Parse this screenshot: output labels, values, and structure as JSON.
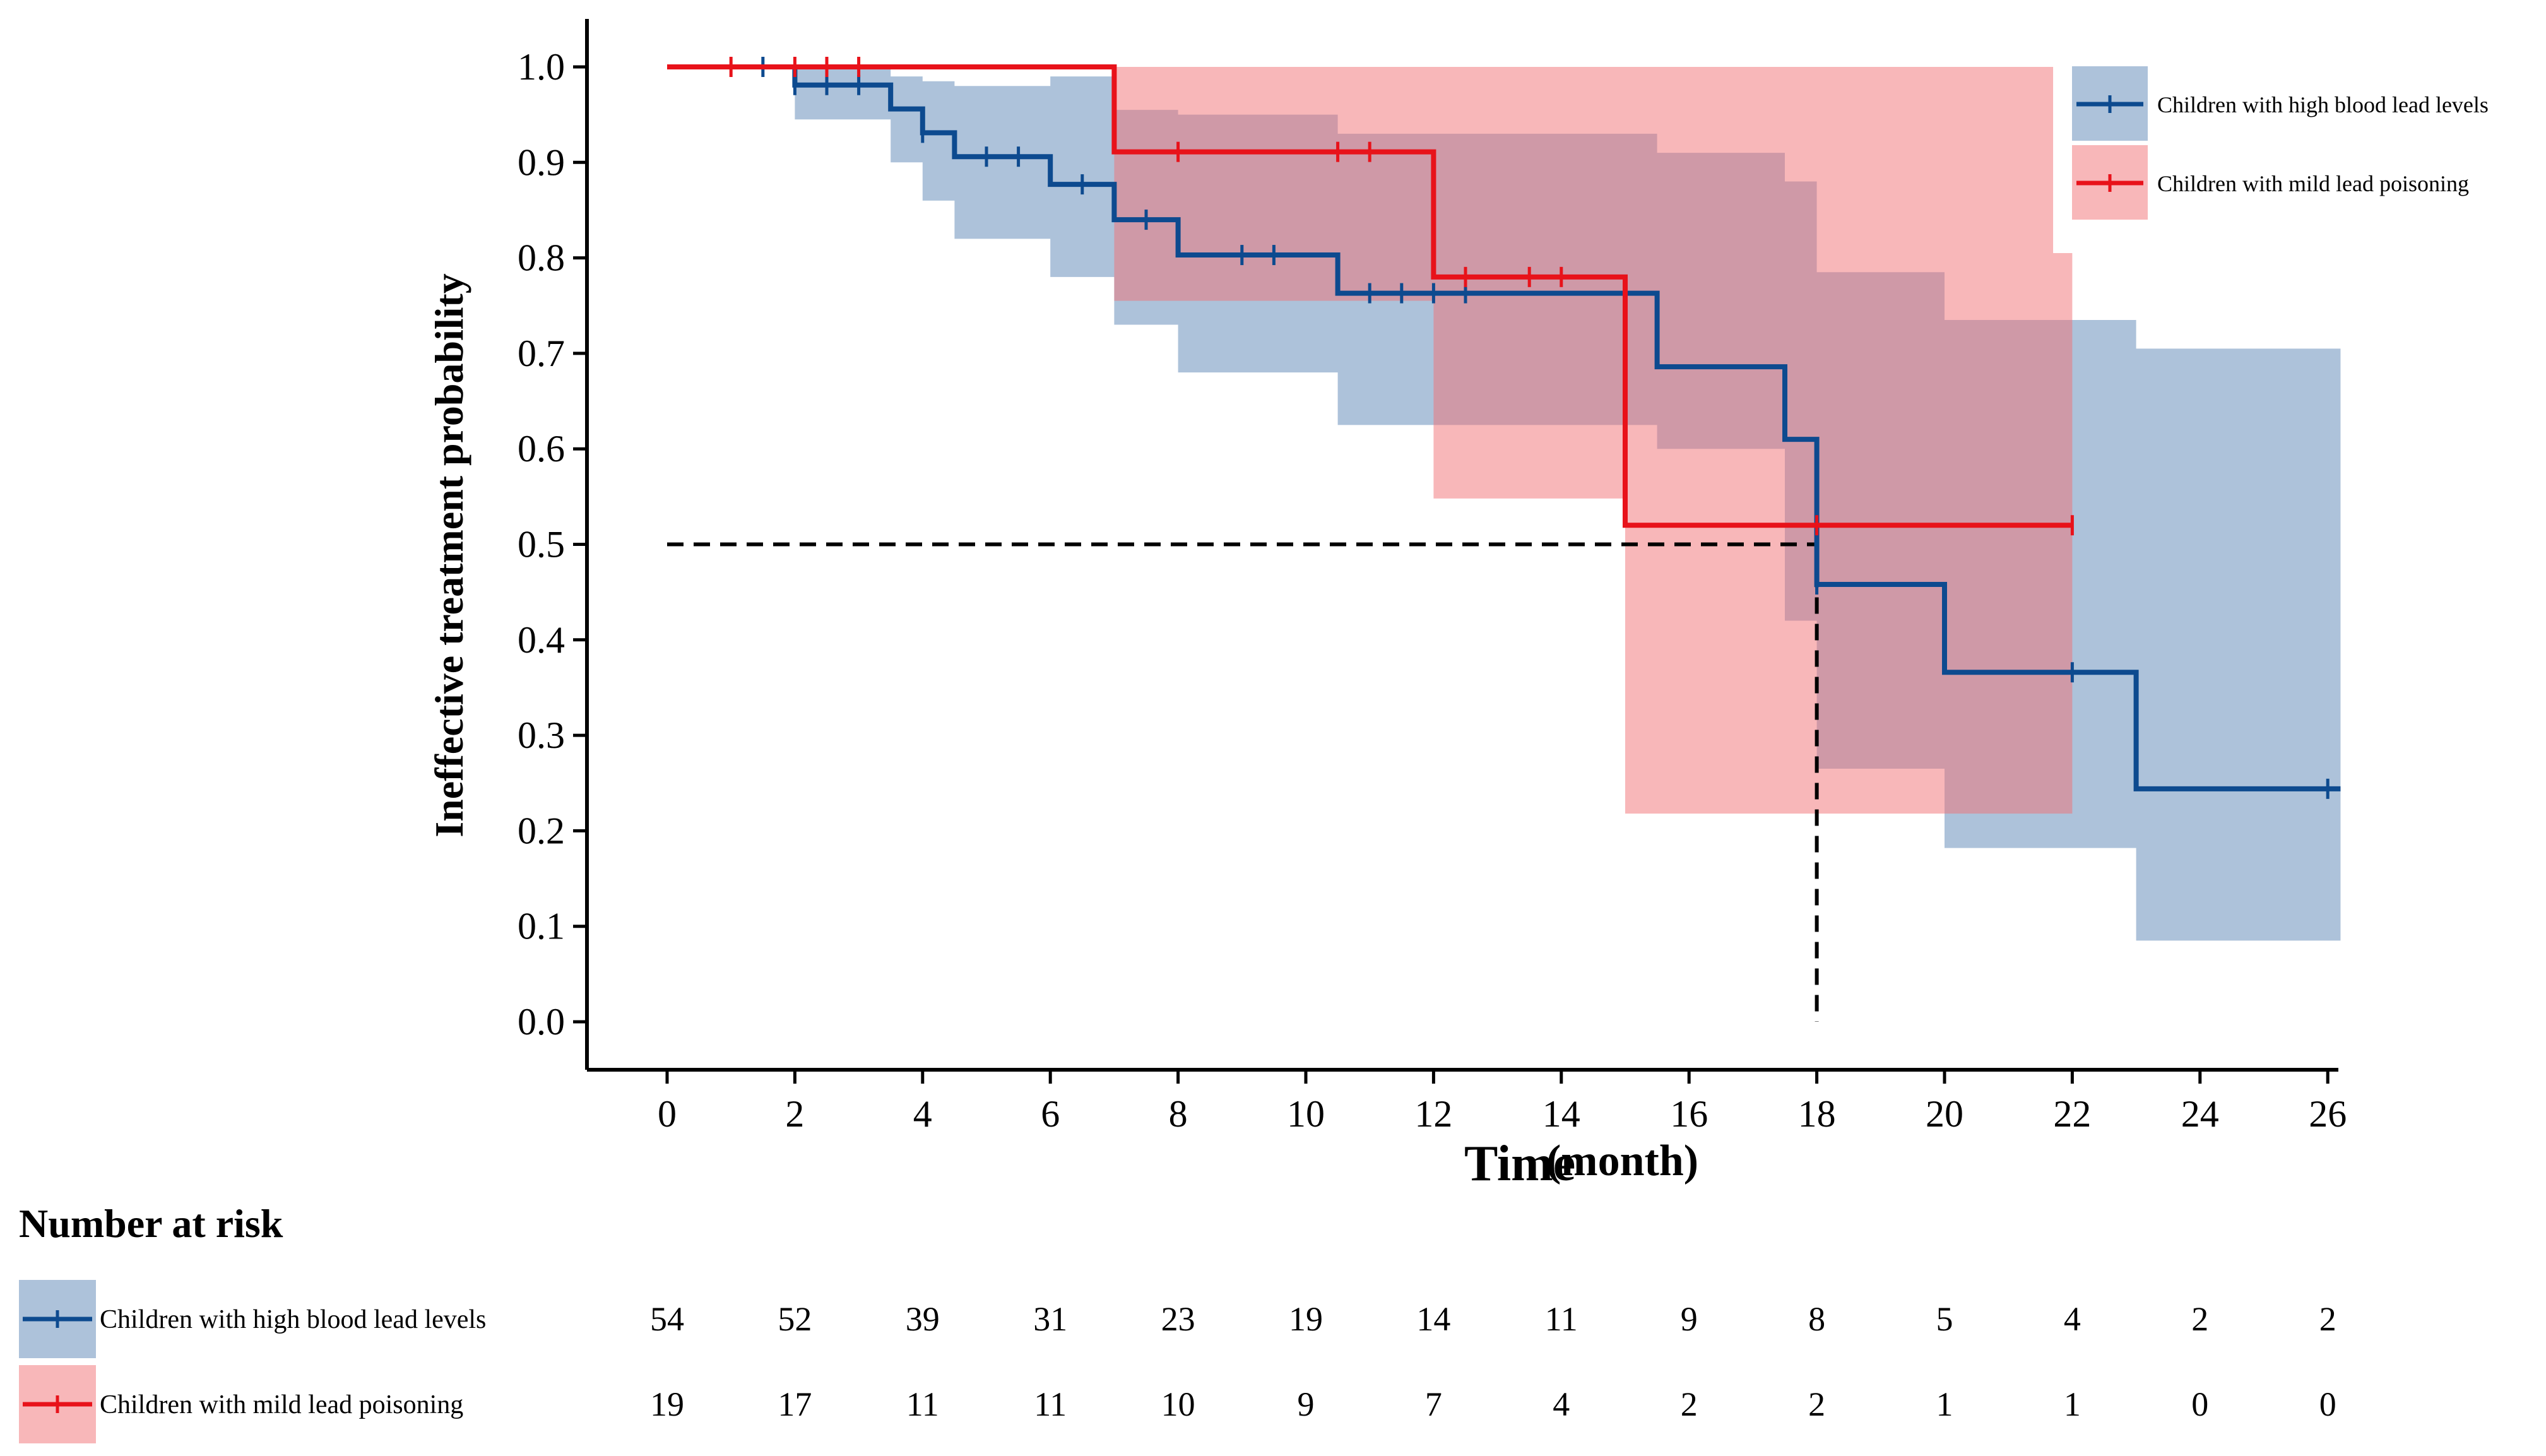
{
  "chart_data": {
    "type": "line",
    "subtype": "kaplan-meier",
    "title": "",
    "xlabel_main": "Time",
    "xlabel_unit": "(month)",
    "ylabel": "Ineffective treatment probability",
    "xlim": [
      0,
      26
    ],
    "ylim": [
      0,
      1
    ],
    "x_ticks": [
      0,
      2,
      4,
      6,
      8,
      10,
      12,
      14,
      16,
      18,
      20,
      22,
      24,
      26
    ],
    "y_ticks": [
      "0.0",
      "0.1",
      "0.2",
      "0.3",
      "0.4",
      "0.5",
      "0.6",
      "0.7",
      "0.8",
      "0.9",
      "1.0"
    ],
    "grid": false,
    "legend_position": "top-right",
    "median_line": {
      "y": 0.5,
      "x": 18
    },
    "series": [
      {
        "name": "Children with high blood lead levels",
        "color": "#0d4a8f",
        "band_color": "#5b86b5",
        "steps": [
          [
            0,
            1
          ],
          [
            2,
            0.981
          ],
          [
            3.5,
            0.956
          ],
          [
            4,
            0.931
          ],
          [
            4.5,
            0.906
          ],
          [
            6,
            0.877
          ],
          [
            7,
            0.84
          ],
          [
            8,
            0.803
          ],
          [
            10.5,
            0.763
          ],
          [
            15.5,
            0.686
          ],
          [
            17.5,
            0.61
          ],
          [
            18,
            0.458
          ],
          [
            20,
            0.366
          ],
          [
            23,
            0.244
          ],
          [
            26.2,
            0.244
          ]
        ],
        "band": [
          [
            0,
            1,
            1
          ],
          [
            2,
            1,
            0.945
          ],
          [
            3.5,
            0.99,
            0.9
          ],
          [
            4,
            0.985,
            0.86
          ],
          [
            4.5,
            0.98,
            0.82
          ],
          [
            6,
            0.99,
            0.78
          ],
          [
            7,
            0.955,
            0.73
          ],
          [
            8,
            0.95,
            0.68
          ],
          [
            10.5,
            0.93,
            0.625
          ],
          [
            15.5,
            0.91,
            0.6
          ],
          [
            17.5,
            0.88,
            0.42
          ],
          [
            18,
            0.785,
            0.265
          ],
          [
            20,
            0.735,
            0.182
          ],
          [
            23,
            0.705,
            0.085
          ],
          [
            26.2,
            0.705,
            0.085
          ]
        ],
        "censor_x": [
          1.5,
          2,
          2.5,
          3,
          4,
          5,
          5.5,
          6.5,
          7.5,
          9,
          9.5,
          11,
          11.5,
          12,
          12.5,
          15,
          18,
          22,
          26
        ]
      },
      {
        "name": "Children with mild lead poisoning",
        "color": "#e8121a",
        "band_color": "#f26f73",
        "steps": [
          [
            0,
            1
          ],
          [
            7,
            0.911
          ],
          [
            12,
            0.78
          ],
          [
            15,
            0.52
          ],
          [
            22,
            0.52
          ]
        ],
        "band": [
          [
            0,
            1,
            1
          ],
          [
            7,
            1,
            0.755
          ],
          [
            12,
            1,
            0.548
          ],
          [
            15,
            1,
            0.218
          ],
          [
            21.7,
            0.805,
            0.218
          ],
          [
            22,
            0.805,
            0.218
          ]
        ],
        "censor_x": [
          1,
          2,
          2.5,
          3,
          8,
          10.5,
          11,
          12.5,
          13.5,
          14,
          18,
          22
        ]
      }
    ]
  },
  "risk_table": {
    "title": "Number at risk",
    "rows": [
      {
        "label": "Children with high blood lead levels",
        "color": "#0d4a8f",
        "band_color": "#5b86b5",
        "values": [
          "54",
          "52",
          "39",
          "31",
          "23",
          "19",
          "14",
          "11",
          "9",
          "8",
          "5",
          "4",
          "2",
          "2"
        ]
      },
      {
        "label": "Children with mild lead poisoning",
        "color": "#e8121a",
        "band_color": "#f26f73",
        "values": [
          "19",
          "17",
          "11",
          "11",
          "10",
          "9",
          "7",
          "4",
          "2",
          "2",
          "1",
          "1",
          "0",
          "0"
        ]
      }
    ]
  }
}
